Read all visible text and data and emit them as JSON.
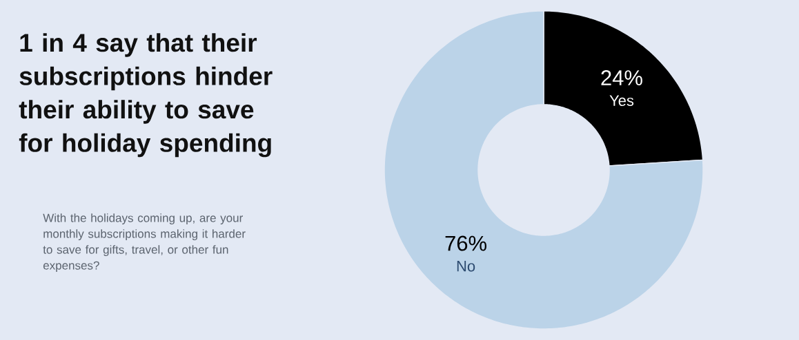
{
  "chart_data": {
    "type": "donut",
    "title": "1 in 4 say that their subscriptions hinder their ability to save for holiday spending",
    "subtitle": "With the holidays coming up, are your monthly subscriptions making it harder to save for gifts, travel, or other fun expenses?",
    "categories": [
      "Yes",
      "No"
    ],
    "values": [
      24,
      76
    ],
    "colors": [
      "#000000",
      "#bbd3e8"
    ],
    "value_labels": [
      "24%",
      "76%"
    ]
  }
}
